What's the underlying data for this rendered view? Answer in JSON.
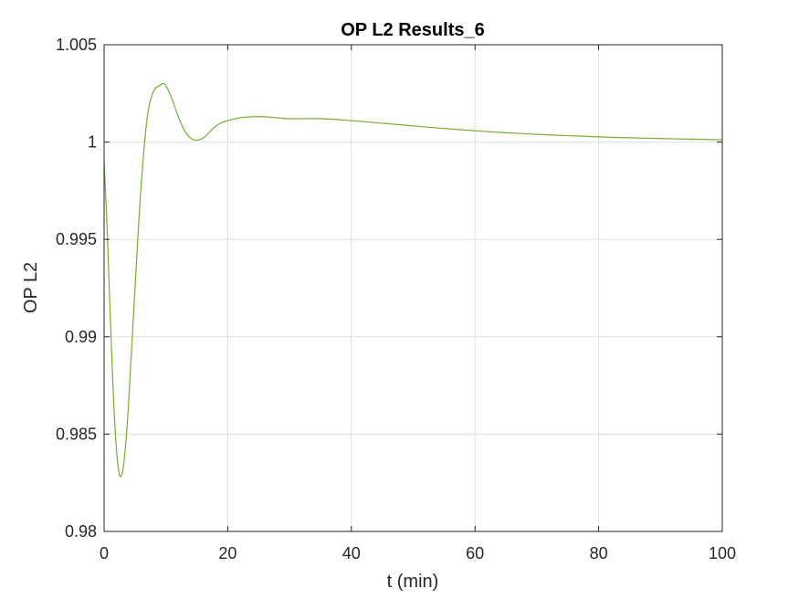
{
  "chart_data": {
    "type": "line",
    "title": "OP L2 Results_6",
    "xlabel": "t (min)",
    "ylabel": "OP L2",
    "xlim": [
      0,
      100
    ],
    "ylim": [
      0.98,
      1.005
    ],
    "xticks": [
      0,
      20,
      40,
      60,
      80,
      100
    ],
    "xtick_labels": [
      "0",
      "20",
      "40",
      "60",
      "80",
      "100"
    ],
    "yticks": [
      0.98,
      0.985,
      0.99,
      0.995,
      1.0,
      1.005
    ],
    "ytick_labels": [
      "0.98",
      "0.985",
      "0.99",
      "0.995",
      "1",
      "1.005"
    ],
    "grid": true,
    "series": [
      {
        "color": "#77ac30",
        "x": [
          0,
          0.5,
          1,
          1.5,
          2,
          2.5,
          3,
          3.5,
          4,
          5,
          6,
          7,
          8,
          9,
          9.5,
          10,
          11,
          12,
          13,
          14,
          15,
          16,
          17,
          18,
          19,
          20,
          22,
          24,
          26,
          28,
          30,
          35,
          40,
          45,
          50,
          55,
          60,
          65,
          70,
          75,
          80,
          85,
          90,
          95,
          100
        ],
        "y": [
          0.999,
          0.9955,
          0.991,
          0.987,
          0.9842,
          0.9829,
          0.9831,
          0.9845,
          0.9868,
          0.9925,
          0.9978,
          1.0013,
          1.0026,
          1.0029,
          1.003,
          1.0029,
          1.0022,
          1.0013,
          1.0006,
          1.0002,
          1.0001,
          1.0002,
          1.0005,
          1.0008,
          1.001,
          1.0011,
          1.00125,
          1.0013,
          1.0013,
          1.00125,
          1.0012,
          1.0012,
          1.0011,
          1.00097,
          1.00083,
          1.0007,
          1.00058,
          1.00048,
          1.0004,
          1.00033,
          1.00027,
          1.00022,
          1.00018,
          1.00015,
          1.00012
        ]
      }
    ]
  }
}
